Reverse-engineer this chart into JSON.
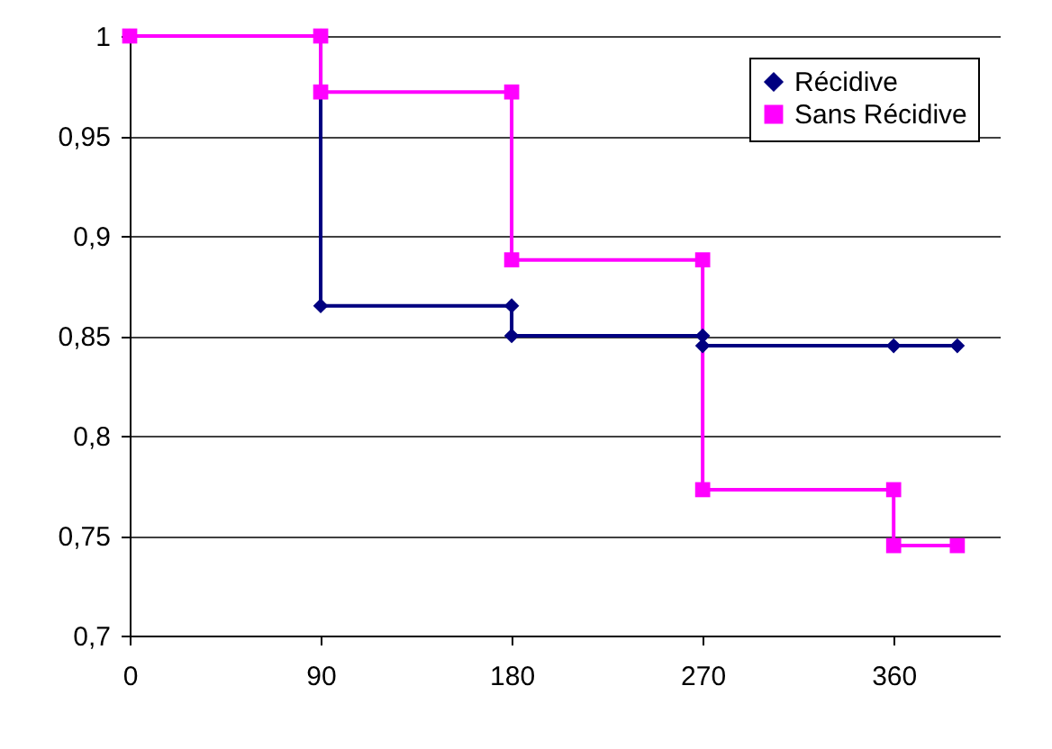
{
  "chart_data": {
    "type": "line",
    "xlim": [
      0,
      410
    ],
    "xticks": [
      0,
      90,
      180,
      270,
      360
    ],
    "ylim": [
      0.7,
      1
    ],
    "yticks": [
      {
        "value": 0.7,
        "label": "0,7"
      },
      {
        "value": 0.75,
        "label": "0,75"
      },
      {
        "value": 0.8,
        "label": "0,8"
      },
      {
        "value": 0.85,
        "label": "0,85"
      },
      {
        "value": 0.9,
        "label": "0,9"
      },
      {
        "value": 0.95,
        "label": "0,95"
      },
      {
        "value": 1,
        "label": "1"
      }
    ],
    "grid": "y",
    "legend": "top right",
    "line_style": "solid",
    "series": [
      {
        "name": "Récidive",
        "color": "#000080",
        "marker": "diamond",
        "x": [
          0,
          90,
          90,
          180,
          180,
          270,
          270,
          360,
          390
        ],
        "values": [
          1,
          1,
          0.865,
          0.865,
          0.85,
          0.85,
          0.845,
          0.845,
          0.845
        ]
      },
      {
        "name": "Sans Récidive",
        "color": "#ff00ff",
        "marker": "square",
        "x": [
          0,
          90,
          90,
          180,
          180,
          270,
          270,
          360,
          360,
          390
        ],
        "values": [
          1,
          1,
          0.972,
          0.972,
          0.888,
          0.888,
          0.773,
          0.773,
          0.745,
          0.745
        ]
      }
    ]
  }
}
